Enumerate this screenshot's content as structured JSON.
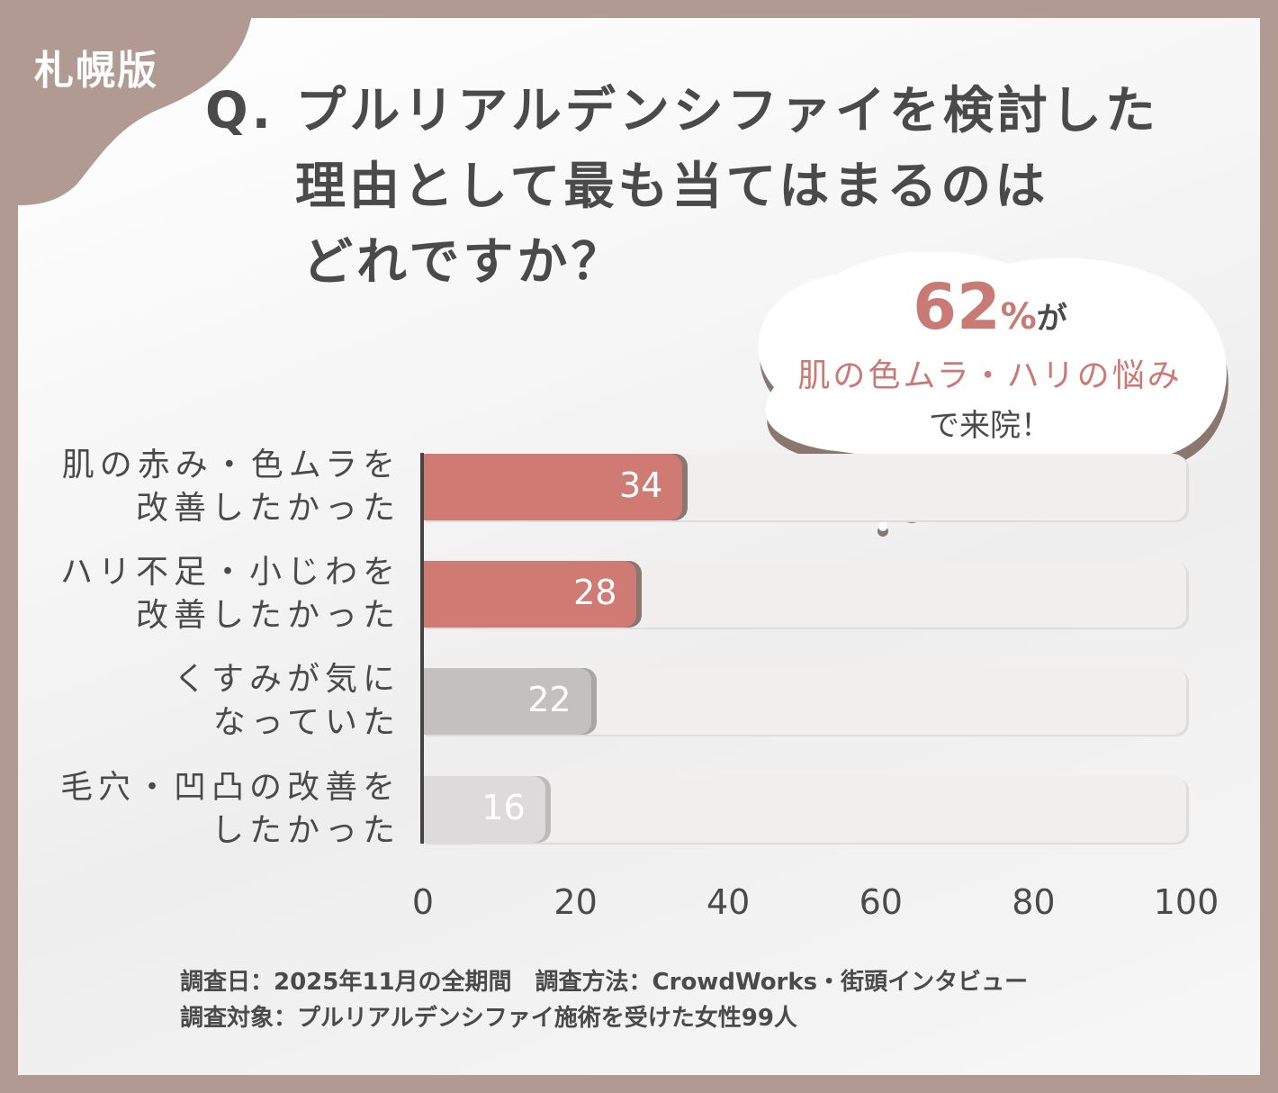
{
  "badge": "札幌版",
  "title": {
    "line1": "Q. プルリアルデンシファイを検討した",
    "line2": "理由として最も当てはまるのは",
    "line3": "どれですか？"
  },
  "callout": {
    "percent": "62",
    "percent_sign": "%",
    "ga": "が",
    "highlight": "肌の色ムラ・ハリの悩み",
    "tail": "で来院！"
  },
  "colors": {
    "frame": "#b09a92",
    "highlight_bar": "#d07a74",
    "gray_bar_1": "#c3c0bf",
    "gray_bar_2": "#dcdada",
    "track": "#f1efee",
    "text": "#4a4a4a"
  },
  "chart_data": {
    "type": "bar",
    "orientation": "horizontal",
    "categories": [
      [
        "肌の赤み・色ムラを",
        "改善したかった"
      ],
      [
        "ハリ不足・小じわを",
        "改善したかった"
      ],
      [
        "くすみが気に",
        "なっていた"
      ],
      [
        "毛穴・凹凸の改善を",
        "したかった"
      ]
    ],
    "values": [
      34,
      28,
      22,
      16
    ],
    "data_labels": [
      "34",
      "28",
      "22",
      "16"
    ],
    "xlim": [
      0,
      100
    ],
    "xticks": [
      "0",
      "20",
      "40",
      "60",
      "80",
      "100"
    ],
    "grid": false
  },
  "footer": {
    "line1": "調査日：2025年11月の全期間　調査方法：CrowdWorks・街頭インタビュー",
    "line2": "調査対象：プルリアルデンシファイ施術を受けた女性99人"
  }
}
